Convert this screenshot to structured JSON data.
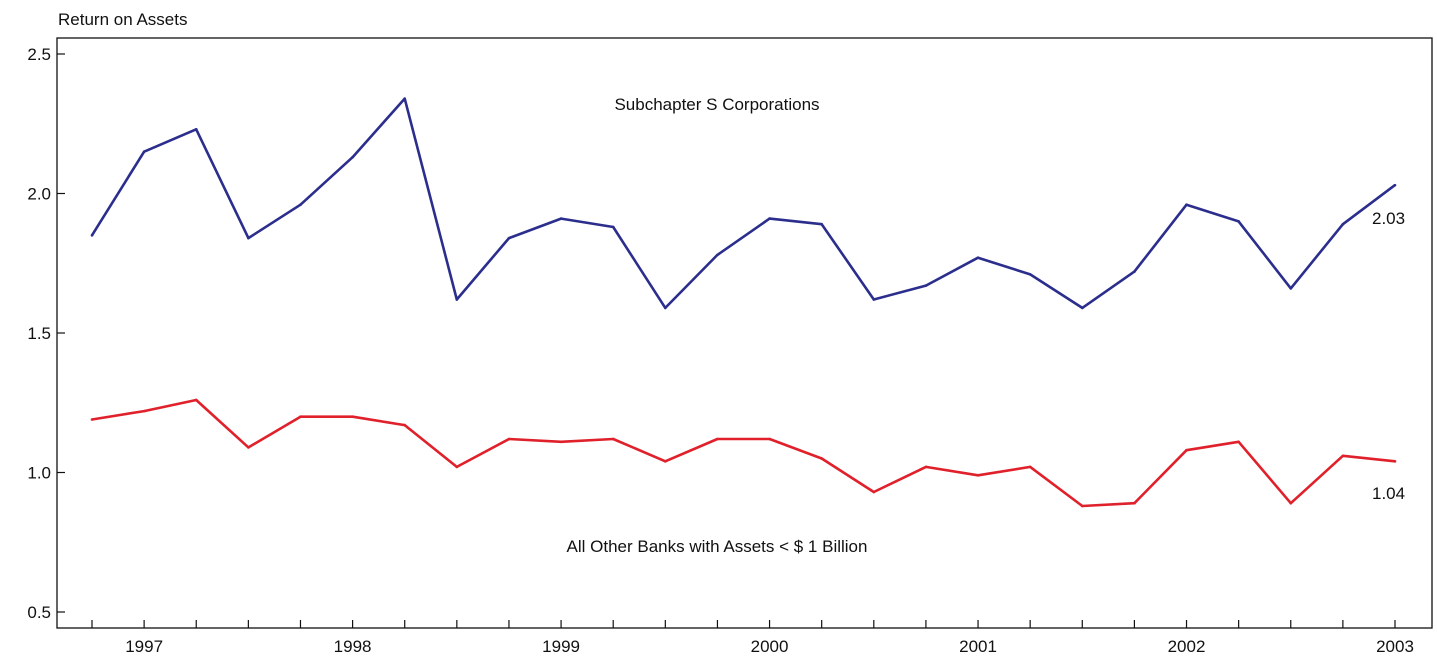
{
  "chart_data": {
    "type": "line",
    "ylabel": "Return on Assets",
    "xlabel": "",
    "ylim": [
      0.5,
      2.6
    ],
    "yticks": [
      0.5,
      1.0,
      1.5,
      2.0,
      2.5
    ],
    "x": [
      "1996-Q4",
      "1997-Q1",
      "1997-Q2",
      "1997-Q3",
      "1997-Q4",
      "1998-Q1",
      "1998-Q2",
      "1998-Q3",
      "1998-Q4",
      "1999-Q1",
      "1999-Q2",
      "1999-Q3",
      "1999-Q4",
      "2000-Q1",
      "2000-Q2",
      "2000-Q3",
      "2000-Q4",
      "2001-Q1",
      "2001-Q2",
      "2001-Q3",
      "2001-Q4",
      "2002-Q1",
      "2002-Q2",
      "2002-Q3",
      "2002-Q4",
      "2003-Q1"
    ],
    "year_labels": [
      "1997",
      "1998",
      "1999",
      "2000",
      "2001",
      "2002",
      "2003"
    ],
    "series": [
      {
        "name": "Subchapter S Corporations",
        "color": "#2b2e8c",
        "values": [
          1.85,
          2.15,
          2.23,
          1.84,
          1.96,
          2.13,
          2.34,
          1.62,
          1.84,
          1.91,
          1.88,
          1.59,
          1.78,
          1.91,
          1.89,
          1.62,
          1.67,
          1.77,
          1.71,
          1.59,
          1.72,
          1.96,
          1.9,
          1.66,
          1.89,
          2.03
        ],
        "end_label": "2.03"
      },
      {
        "name": "All Other Banks with Assets < $ 1 Billion",
        "color": "#e0202a",
        "values": [
          1.19,
          1.22,
          1.26,
          1.09,
          1.2,
          1.2,
          1.17,
          1.02,
          1.12,
          1.11,
          1.12,
          1.04,
          1.12,
          1.12,
          1.05,
          0.93,
          1.02,
          0.99,
          1.02,
          0.88,
          0.89,
          1.08,
          1.11,
          0.89,
          1.06,
          1.04
        ],
        "end_label": "1.04"
      }
    ],
    "annotations": [
      "Subchapter S Corporations",
      "All Other Banks with Assets < $ 1 Billion"
    ],
    "grid": false
  }
}
